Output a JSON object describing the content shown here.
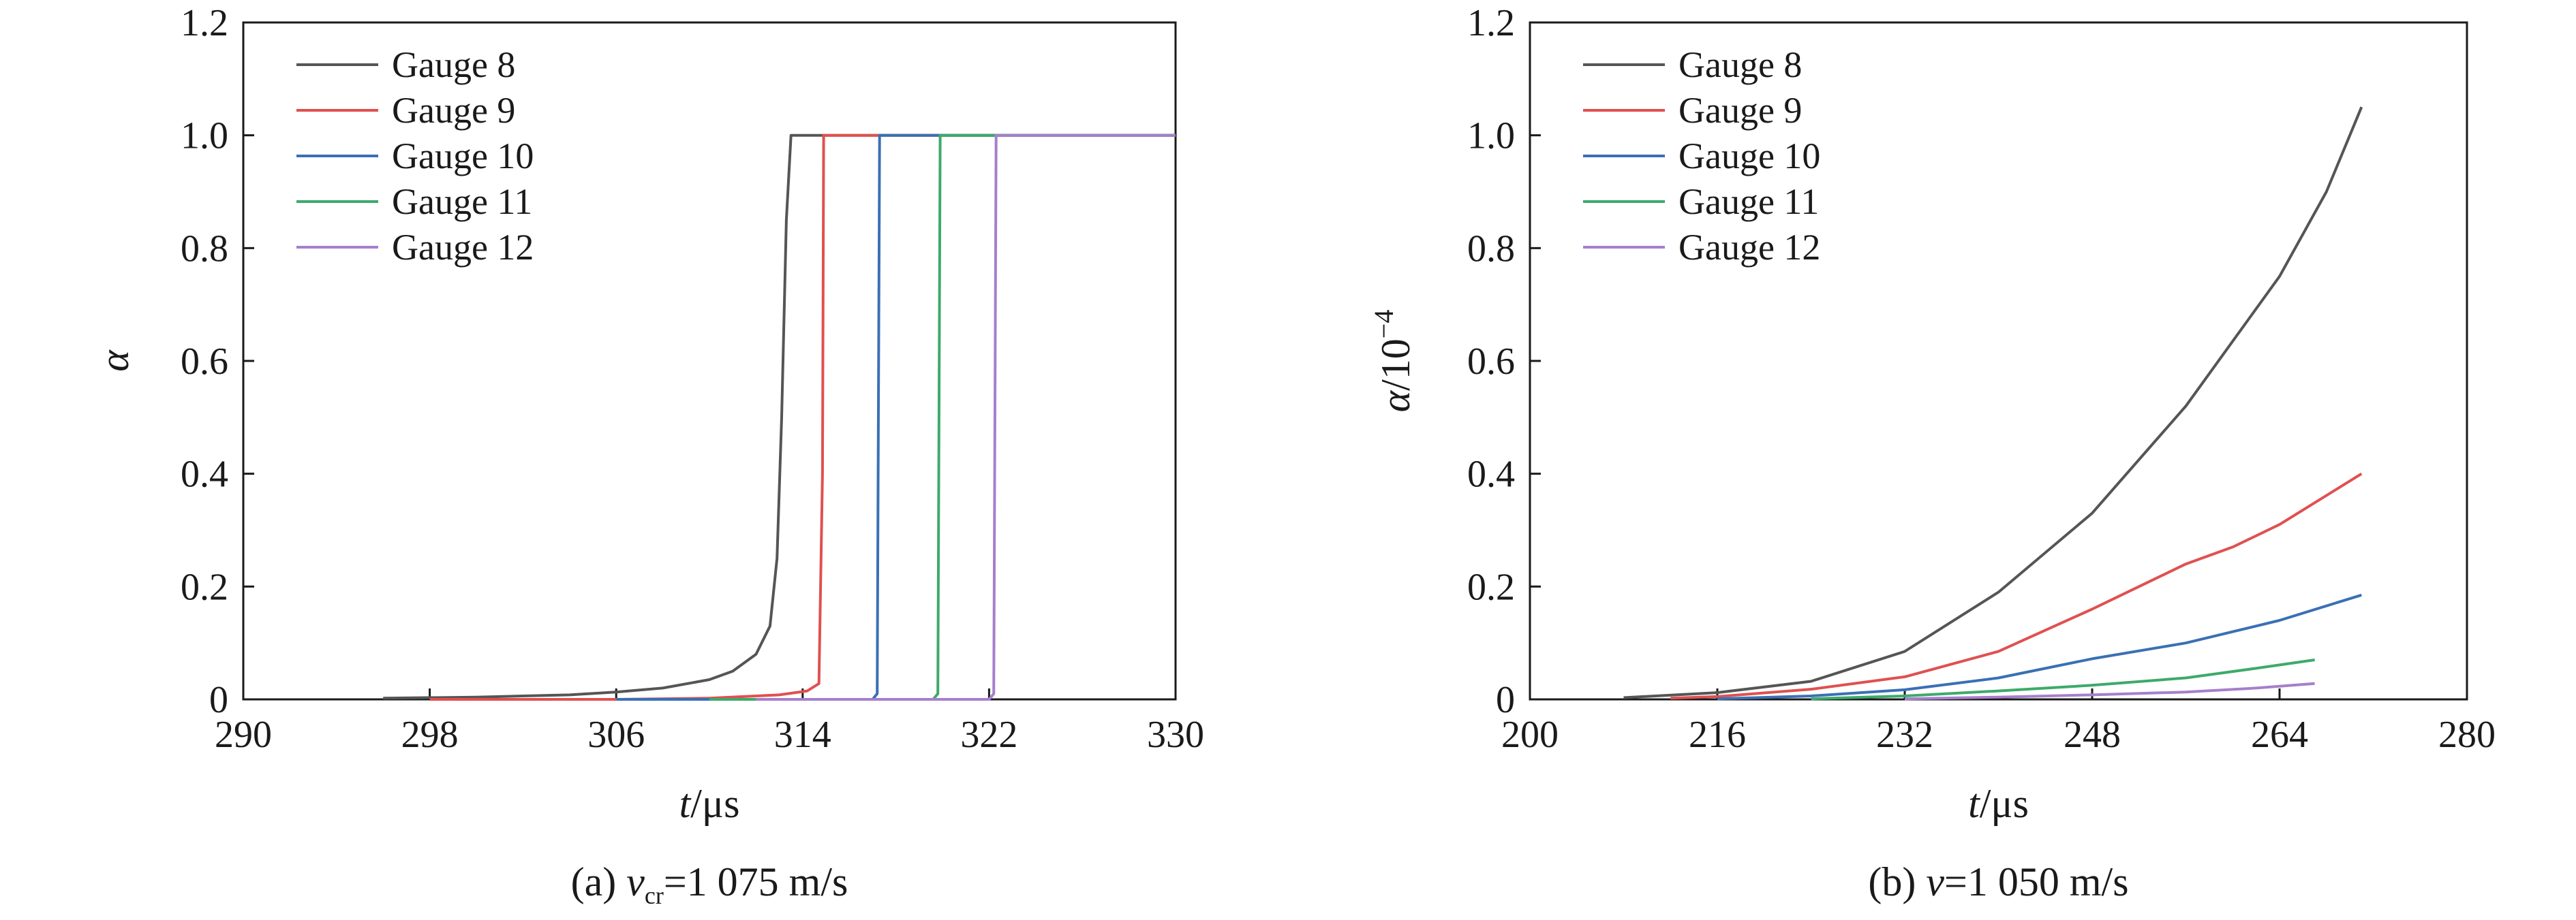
{
  "colors": {
    "gauge_8": "#555555",
    "gauge_9": "#e05050",
    "gauge_10": "#3a70b5",
    "gauge_11": "#3daa6a",
    "gauge_12": "#a67fcc"
  },
  "chart_data": [
    {
      "type": "line",
      "caption_prefix": "(a) ",
      "caption_var": "v",
      "caption_sub": "cr",
      "caption_rest": "=1 075 m/s",
      "xlabel_var": "t",
      "xlabel_unit": "/μs",
      "ylabel_var": "α",
      "ylabel_rest": "",
      "ylabel_sup": "",
      "xlim": [
        290,
        330
      ],
      "ylim": [
        0,
        1.2
      ],
      "xticks": [
        290,
        298,
        306,
        314,
        322,
        330
      ],
      "yticks": [
        0,
        0.2,
        0.4,
        0.6,
        0.8,
        1.0,
        1.2
      ],
      "ytick_labels": [
        "0",
        "0.2",
        "0.4",
        "0.6",
        "0.8",
        "1.0",
        "1.2"
      ],
      "legend_position": "top-left",
      "series": [
        {
          "name": "Gauge 8",
          "color_key": "gauge_8",
          "x": [
            296,
            300,
            304,
            306,
            308,
            310,
            311,
            312,
            312.6,
            312.9,
            313.1,
            313.3,
            313.5,
            330
          ],
          "y": [
            0.002,
            0.004,
            0.008,
            0.013,
            0.02,
            0.035,
            0.05,
            0.08,
            0.13,
            0.25,
            0.5,
            0.85,
            1.0,
            1.0
          ]
        },
        {
          "name": "Gauge 9",
          "color_key": "gauge_9",
          "x": [
            298,
            306,
            310,
            313,
            314.2,
            314.7,
            314.85,
            314.9,
            330
          ],
          "y": [
            0.0,
            0.0,
            0.002,
            0.008,
            0.015,
            0.028,
            0.4,
            1.0,
            1.0
          ]
        },
        {
          "name": "Gauge 10",
          "color_key": "gauge_10",
          "x": [
            306,
            317,
            317.2,
            317.3,
            330
          ],
          "y": [
            0.0,
            0.0,
            0.01,
            1.0,
            1.0
          ]
        },
        {
          "name": "Gauge 11",
          "color_key": "gauge_11",
          "x": [
            310,
            319.6,
            319.8,
            319.9,
            330
          ],
          "y": [
            0.0,
            0.0,
            0.01,
            1.0,
            1.0
          ]
        },
        {
          "name": "Gauge 12",
          "color_key": "gauge_12",
          "x": [
            312,
            322,
            322.2,
            322.3,
            330
          ],
          "y": [
            0.0,
            0.0,
            0.01,
            1.0,
            1.0
          ]
        }
      ]
    },
    {
      "type": "line",
      "caption_prefix": "(b) ",
      "caption_var": "v",
      "caption_sub": "",
      "caption_rest": "=1 050 m/s",
      "xlabel_var": "t",
      "xlabel_unit": "/μs",
      "ylabel_var": "α",
      "ylabel_rest": "/10",
      "ylabel_sup": "−4",
      "xlim": [
        200,
        280
      ],
      "ylim": [
        0,
        1.2
      ],
      "xticks": [
        200,
        216,
        232,
        248,
        264,
        280
      ],
      "yticks": [
        0,
        0.2,
        0.4,
        0.6,
        0.8,
        1.0,
        1.2
      ],
      "ytick_labels": [
        "0",
        "0.2",
        "0.4",
        "0.6",
        "0.8",
        "1.0",
        "1.2"
      ],
      "legend_position": "top-left",
      "series": [
        {
          "name": "Gauge 8",
          "color_key": "gauge_8",
          "x": [
            208,
            216,
            224,
            232,
            240,
            248,
            256,
            264,
            268,
            271
          ],
          "y": [
            0.003,
            0.012,
            0.032,
            0.085,
            0.19,
            0.33,
            0.52,
            0.75,
            0.9,
            1.05
          ]
        },
        {
          "name": "Gauge 9",
          "color_key": "gauge_9",
          "x": [
            212,
            216,
            224,
            232,
            240,
            248,
            256,
            260,
            264,
            271
          ],
          "y": [
            0.002,
            0.005,
            0.018,
            0.04,
            0.085,
            0.16,
            0.24,
            0.27,
            0.31,
            0.4
          ]
        },
        {
          "name": "Gauge 10",
          "color_key": "gauge_10",
          "x": [
            216,
            224,
            232,
            240,
            248,
            256,
            264,
            271
          ],
          "y": [
            0.001,
            0.006,
            0.017,
            0.038,
            0.072,
            0.1,
            0.14,
            0.185
          ]
        },
        {
          "name": "Gauge 11",
          "color_key": "gauge_11",
          "x": [
            224,
            232,
            240,
            248,
            256,
            262,
            267
          ],
          "y": [
            0.001,
            0.006,
            0.015,
            0.025,
            0.038,
            0.055,
            0.07
          ]
        },
        {
          "name": "Gauge 12",
          "color_key": "gauge_12",
          "x": [
            232,
            240,
            248,
            256,
            262,
            267
          ],
          "y": [
            0.001,
            0.004,
            0.008,
            0.013,
            0.02,
            0.028
          ]
        }
      ]
    }
  ]
}
